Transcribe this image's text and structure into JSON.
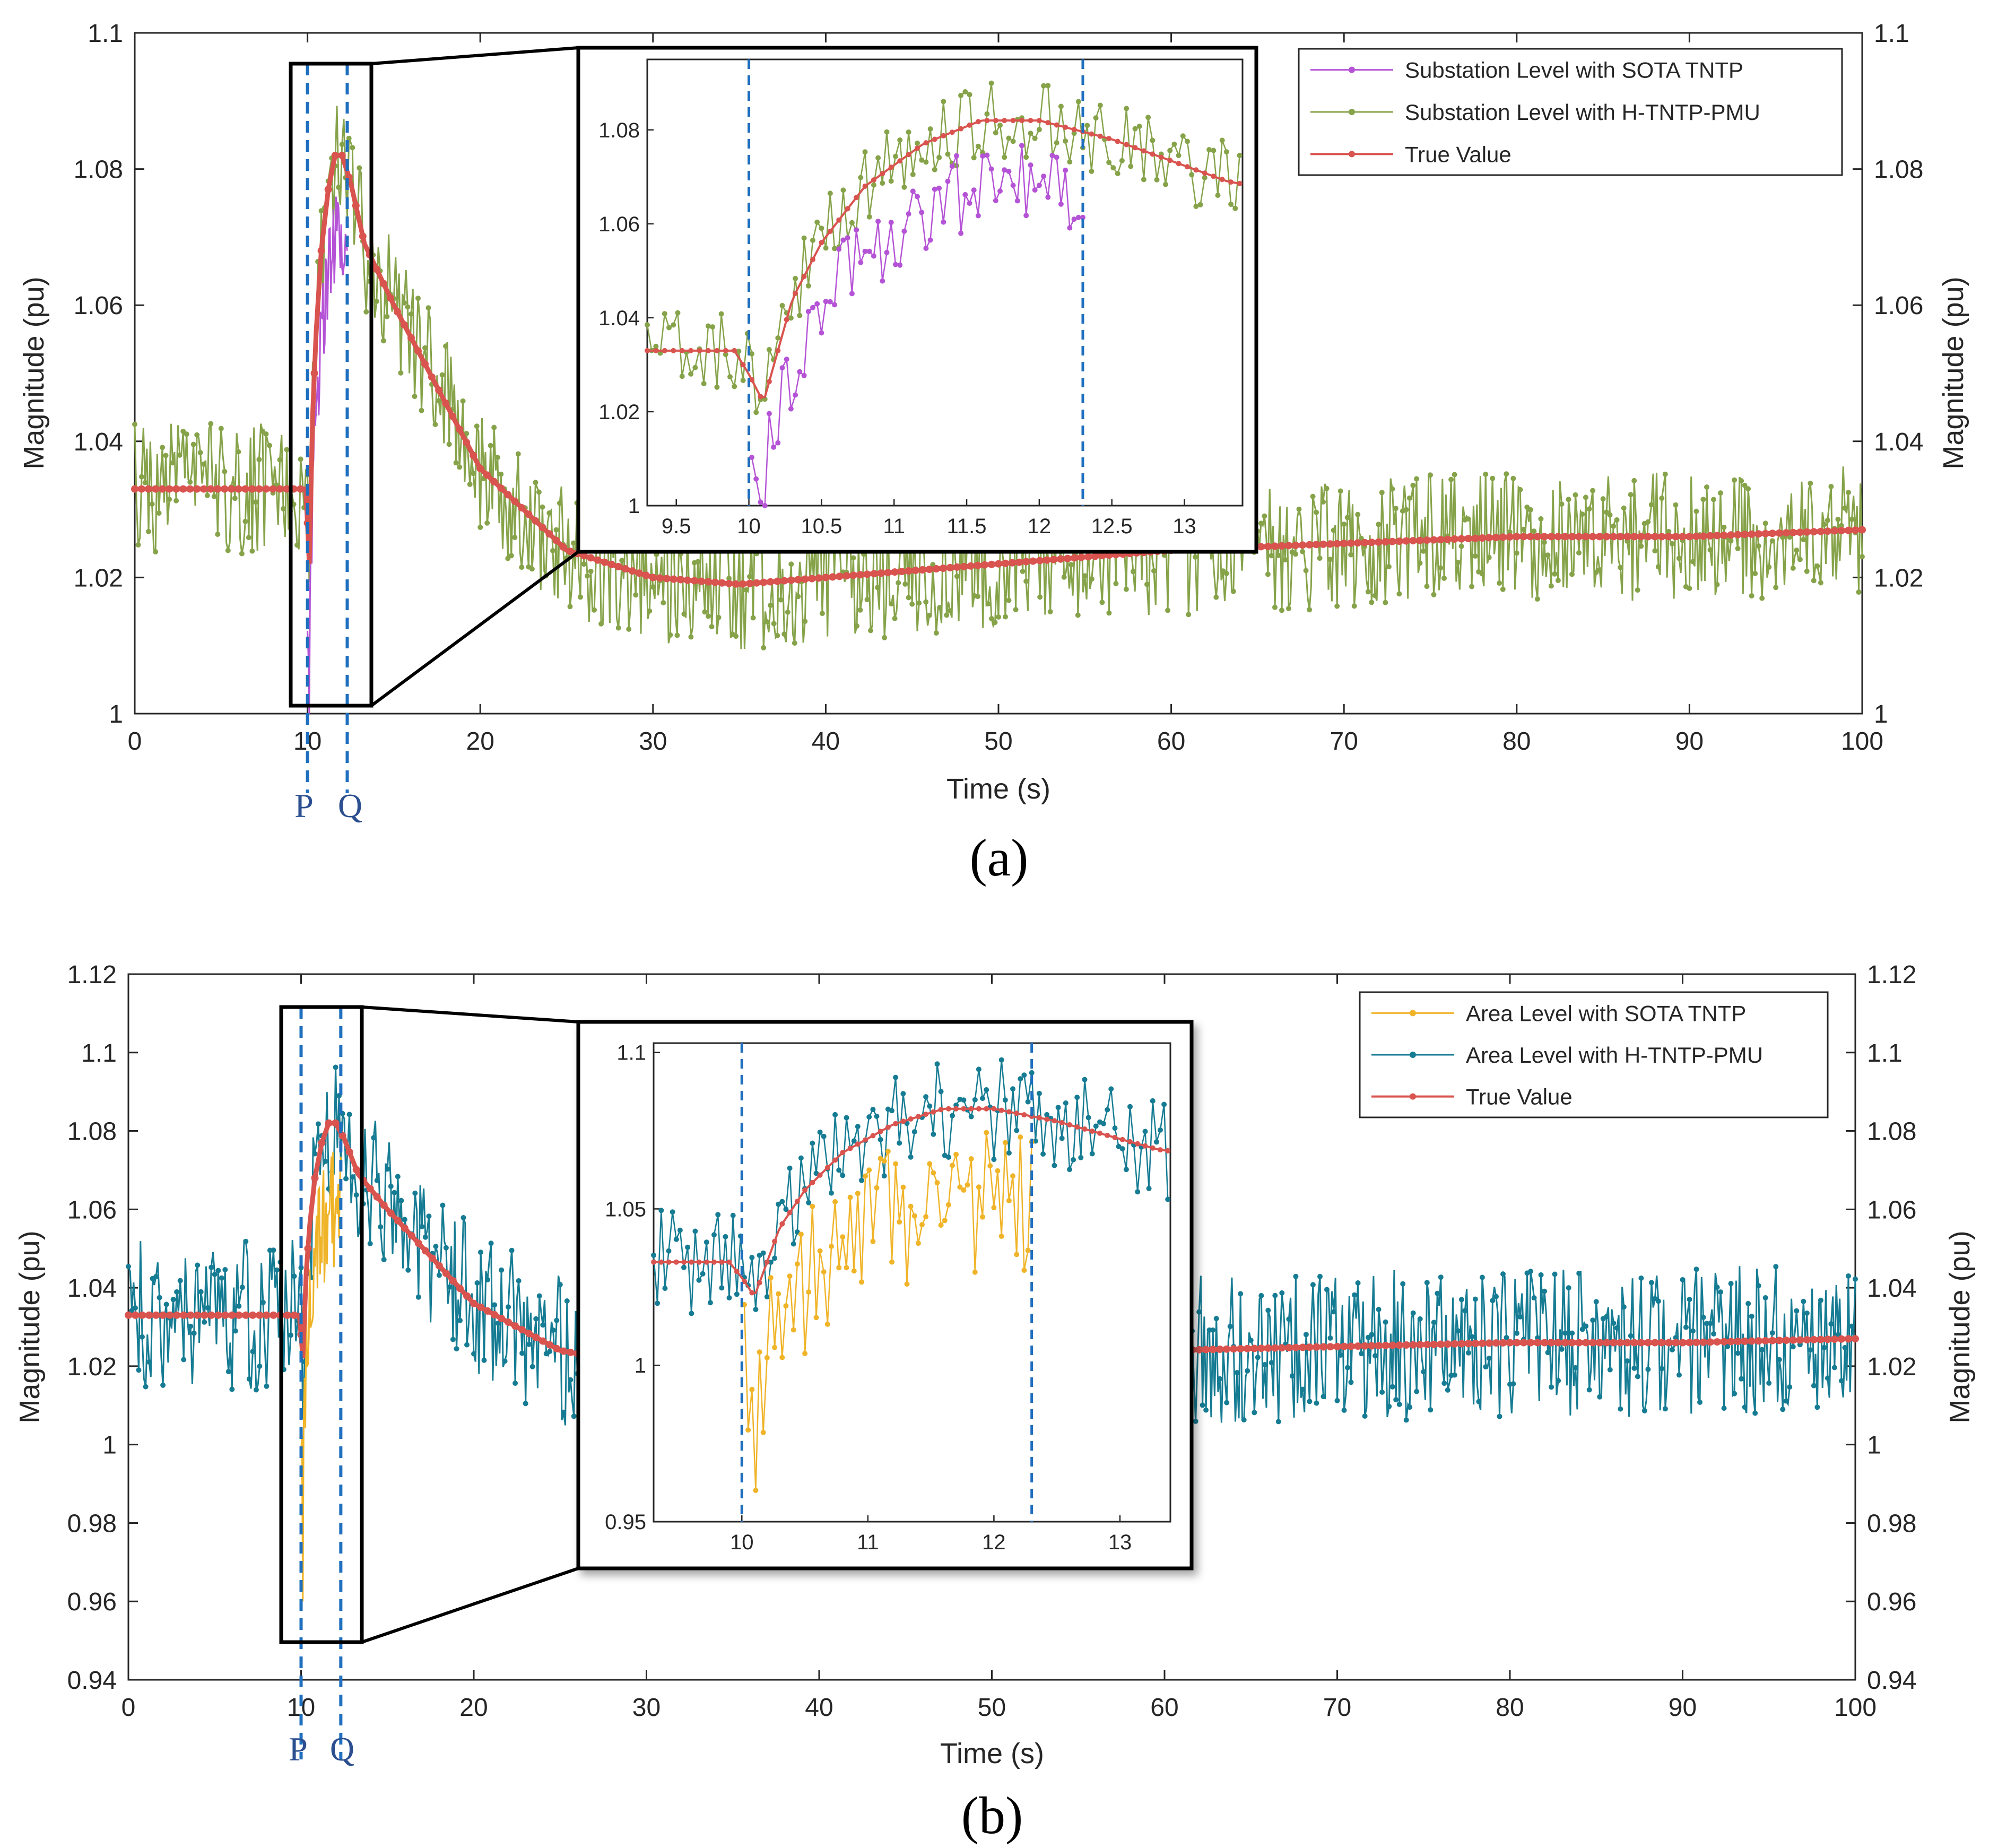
{
  "colors": {
    "true_value": "#d9534f",
    "sota_substation": "#b553d6",
    "htntp_substation": "#86a34a",
    "sota_area": "#f0b429",
    "htntp_area": "#167c93",
    "marker_lines": "#1f6fbf",
    "pq_text": "#2b4f8f"
  },
  "chart_data": [
    {
      "type": "line",
      "caption": "(a)",
      "xlabel": "Time (s)",
      "ylabel": "Magnitude (pu)",
      "xlim": [
        0,
        100
      ],
      "ylim": [
        1,
        1.1
      ],
      "x_ticks": [
        "0",
        "10",
        "20",
        "30",
        "40",
        "50",
        "60",
        "70",
        "80",
        "90",
        "100"
      ],
      "y_ticks": [
        "1",
        "1.02",
        "1.04",
        "1.06",
        "1.08",
        "1.1"
      ],
      "legend_position": "top-right",
      "markers": {
        "P": 10,
        "Q": 12.3
      },
      "series": [
        {
          "name": "Substation Level with SOTA TNTP",
          "color_key": "sota_substation",
          "t_start": 10,
          "t_end": 12.3
        },
        {
          "name": "Substation Level with H-TNTP-PMU",
          "color_key": "htntp_substation",
          "noise": 0.006
        },
        {
          "name": "True Value",
          "color_key": "true_value"
        }
      ],
      "true_value_keypoints": {
        "t": [
          0,
          9.9,
          10.0,
          10.1,
          10.3,
          10.5,
          10.8,
          11.2,
          11.6,
          12.0,
          12.5,
          13.3,
          15,
          20,
          25,
          30,
          35,
          40,
          50,
          60,
          70,
          80,
          90,
          100
        ],
        "v": [
          1.033,
          1.033,
          1.028,
          1.022,
          1.044,
          1.056,
          1.068,
          1.077,
          1.082,
          1.082,
          1.078,
          1.069,
          1.06,
          1.036,
          1.024,
          1.02,
          1.019,
          1.02,
          1.022,
          1.024,
          1.025,
          1.026,
          1.026,
          1.027
        ]
      },
      "inset": {
        "xlim": [
          9.3,
          13.4
        ],
        "ylim": [
          1,
          1.095
        ],
        "x_ticks": [
          "9.5",
          "10",
          "10.5",
          "11",
          "11.5",
          "12",
          "12.5",
          "13"
        ],
        "y_ticks": [
          "1",
          "1.02",
          "1.04",
          "1.06",
          "1.08"
        ]
      }
    },
    {
      "type": "line",
      "caption": "(b)",
      "xlabel": "Time (s)",
      "ylabel": "Magnitude (pu)",
      "xlim": [
        0,
        100
      ],
      "ylim": [
        0.94,
        1.12
      ],
      "x_ticks": [
        "0",
        "10",
        "20",
        "30",
        "40",
        "50",
        "60",
        "70",
        "80",
        "90",
        "100"
      ],
      "y_ticks": [
        "0.94",
        "0.96",
        "0.98",
        "1",
        "1.02",
        "1.04",
        "1.06",
        "1.08",
        "1.1",
        "1.12"
      ],
      "legend_position": "top-right",
      "markers": {
        "P": 10,
        "Q": 12.3
      },
      "series": [
        {
          "name": "Area Level with SOTA TNTP",
          "color_key": "sota_area",
          "t_start": 10,
          "t_end": 12.3
        },
        {
          "name": "Area Level with H-TNTP-PMU",
          "color_key": "htntp_area",
          "noise": 0.012
        },
        {
          "name": "True Value",
          "color_key": "true_value"
        }
      ],
      "true_value_keypoints": {
        "t": [
          0,
          9.9,
          10.0,
          10.1,
          10.3,
          10.5,
          10.8,
          11.2,
          11.6,
          12.0,
          12.5,
          13.3,
          15,
          20,
          25,
          30,
          35,
          40,
          50,
          60,
          70,
          80,
          90,
          100
        ],
        "v": [
          1.033,
          1.033,
          1.028,
          1.022,
          1.044,
          1.056,
          1.068,
          1.077,
          1.082,
          1.082,
          1.078,
          1.069,
          1.06,
          1.036,
          1.024,
          1.02,
          1.019,
          1.02,
          1.022,
          1.024,
          1.025,
          1.026,
          1.026,
          1.027
        ]
      },
      "inset": {
        "xlim": [
          9.3,
          13.4
        ],
        "ylim": [
          0.95,
          1.103
        ],
        "x_ticks": [
          "10",
          "11",
          "12",
          "13"
        ],
        "y_ticks": [
          "0.95",
          "1",
          "1.05",
          "1.1"
        ]
      }
    }
  ],
  "pq_labels": {
    "p": "P",
    "q": "Q"
  }
}
